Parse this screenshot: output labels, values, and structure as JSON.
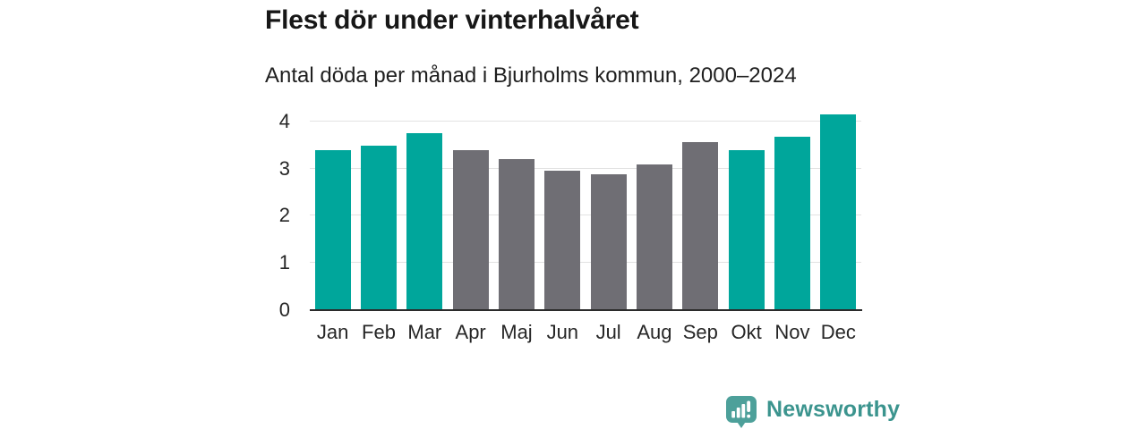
{
  "header": {
    "title": "Flest dör under vinterhalvåret",
    "subtitle": "Antal döda per månad i Bjurholms kommun, 2000–2024"
  },
  "chart_data": {
    "type": "bar",
    "title": "Flest dör under vinterhalvåret",
    "subtitle": "Antal döda per månad i Bjurholms kommun, 2000–2024",
    "categories": [
      "Jan",
      "Feb",
      "Mar",
      "Apr",
      "Maj",
      "Jun",
      "Jul",
      "Aug",
      "Sep",
      "Okt",
      "Nov",
      "Dec"
    ],
    "values": [
      3.4,
      3.48,
      3.76,
      3.4,
      3.2,
      2.95,
      2.88,
      3.08,
      3.56,
      3.4,
      3.68,
      4.15
    ],
    "bar_colors": [
      "#00a69b",
      "#00a69b",
      "#00a69b",
      "#6f6e74",
      "#6f6e74",
      "#6f6e74",
      "#6f6e74",
      "#6f6e74",
      "#6f6e74",
      "#00a69b",
      "#00a69b",
      "#00a69b"
    ],
    "winter_bar_color": "#00a69b",
    "summer_bar_color": "#6f6e74",
    "yticks": [
      0,
      1,
      2,
      3,
      4
    ],
    "ylim": [
      0,
      4.3
    ],
    "grid": "horizontal",
    "gridline_color": "#e2e2e2",
    "axis_line_color": "#2b2b2b",
    "legend": "none"
  },
  "branding": {
    "logo_text": "Newsworthy",
    "logo_icon": "bar-chart-speech-bubble-icon",
    "logo_text_color": "#3b948e",
    "logo_bubble_color": "#4da09a"
  }
}
